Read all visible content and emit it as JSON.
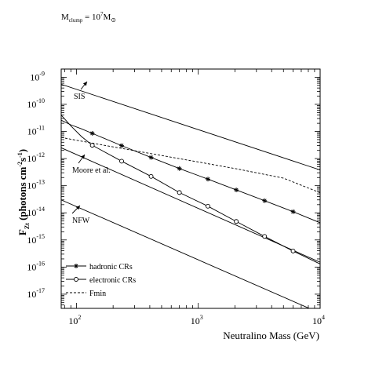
{
  "chart_data": {
    "type": "line",
    "title": "",
    "title_prefix": "M",
    "title_sub": "clump",
    "title_eq": " = 10",
    "title_sup": "7",
    "title_unit": "M",
    "title_unit_sub": "⊙",
    "xlabel": "Neutralino Mass (GeV)",
    "ylabel_main": "F",
    "ylabel_sub": "Zt",
    "ylabel_rest": " (photons cm",
    "ylabel_sup1": "-2",
    "ylabel_mid": "s",
    "ylabel_sup2": "-1",
    "ylabel_end": ")",
    "xscale": "log",
    "yscale": "log",
    "xlim": [
      75,
      10000
    ],
    "ylim": [
      3e-18,
      2e-09
    ],
    "x_ticks": [
      {
        "base": "10",
        "exp": "2",
        "value": 100
      },
      {
        "base": "10",
        "exp": "3",
        "value": 1000
      },
      {
        "base": "10",
        "exp": "4",
        "value": 10000
      }
    ],
    "y_ticks": [
      {
        "base": "10",
        "exp": "-9",
        "value": 1e-09
      },
      {
        "base": "10",
        "exp": "-10",
        "value": 1e-10
      },
      {
        "base": "10",
        "exp": "-11",
        "value": 1e-11
      },
      {
        "base": "10",
        "exp": "-12",
        "value": 1e-12
      },
      {
        "base": "10",
        "exp": "-13",
        "value": 1e-13
      },
      {
        "base": "10",
        "exp": "-14",
        "value": 1e-14
      },
      {
        "base": "10",
        "exp": "-15",
        "value": 1e-15
      },
      {
        "base": "10",
        "exp": "-16",
        "value": 1e-16
      },
      {
        "base": "10",
        "exp": "-17",
        "value": 1e-17
      }
    ],
    "reference_lines": [
      {
        "label": "SIS",
        "points": [
          [
            75,
            5.5e-10
          ],
          [
            10000,
            3.8e-13
          ]
        ]
      },
      {
        "label": "Moore et al.",
        "points": [
          [
            75,
            2.5e-12
          ],
          [
            10000,
            1.5e-16
          ]
        ]
      },
      {
        "label": "NFW",
        "points": [
          [
            75,
            3e-14
          ],
          [
            10000,
            2e-18
          ]
        ]
      }
    ],
    "series": [
      {
        "name": "hadronic CRs",
        "marker": "asterisk",
        "dash": "solid",
        "x": [
          75,
          90,
          110,
          135,
          235,
          410,
          700,
          1200,
          2050,
          3500,
          6000,
          10000
        ],
        "y": [
          2.6e-11,
          1.75e-11,
          1.25e-11,
          8.5e-12,
          3e-12,
          1.1e-12,
          4.3e-13,
          1.75e-13,
          7e-14,
          2.8e-14,
          1.1e-14,
          4.3e-15
        ]
      },
      {
        "name": "electronic CRs",
        "marker": "open-circle",
        "dash": "solid",
        "x": [
          75,
          90,
          110,
          135,
          235,
          410,
          700,
          1200,
          2050,
          3500,
          6000,
          10000
        ],
        "y": [
          4e-11,
          1.6e-11,
          6.5e-12,
          3.1e-12,
          8e-13,
          2.2e-13,
          5.6e-14,
          1.75e-14,
          4.8e-15,
          1.35e-15,
          3.9e-16,
          1.3e-16
        ]
      },
      {
        "name": "Fmin",
        "marker": "none",
        "dash": "dashed",
        "x": [
          75,
          200,
          500,
          1000,
          2000,
          5000,
          10000
        ],
        "y": [
          6e-12,
          2.7e-12,
          1.3e-12,
          7.5e-13,
          4.3e-13,
          1.9e-13,
          5.5e-14
        ]
      }
    ],
    "legend_position": "bottom-left",
    "grid": false
  }
}
